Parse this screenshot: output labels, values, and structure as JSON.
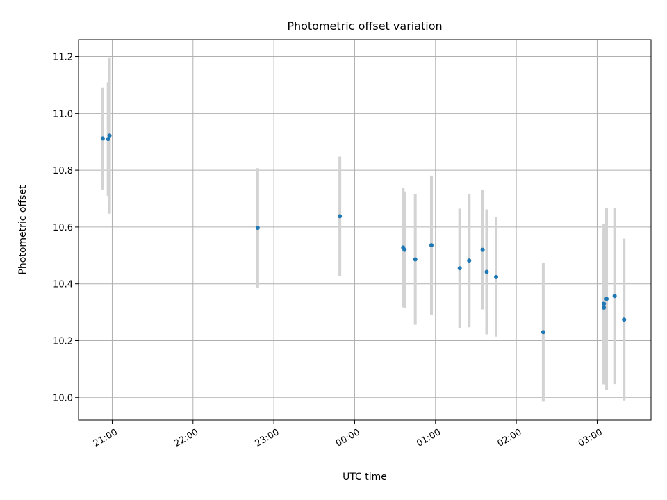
{
  "chart_data": {
    "type": "scatter",
    "title": "Photometric offset variation",
    "xlabel": "UTC time",
    "ylabel": "Photometric offset",
    "x_ticks": [
      {
        "hours": 21,
        "label": "21:00"
      },
      {
        "hours": 22,
        "label": "22:00"
      },
      {
        "hours": 23,
        "label": "23:00"
      },
      {
        "hours": 24,
        "label": "00:00"
      },
      {
        "hours": 25,
        "label": "01:00"
      },
      {
        "hours": 26,
        "label": "02:00"
      },
      {
        "hours": 27,
        "label": "03:00"
      }
    ],
    "y_ticks": [
      10.0,
      10.2,
      10.4,
      10.6,
      10.8,
      11.0,
      11.2
    ],
    "y_tick_labels": [
      "10.0",
      "10.2",
      "10.4",
      "10.6",
      "10.8",
      "11.0",
      "11.2"
    ],
    "xlim_utc": [
      "20:35",
      "03:40"
    ],
    "ylim": [
      9.92,
      11.26
    ],
    "grid": true,
    "colors": {
      "points": "#1f77b4",
      "errorbars": "#d3d3d3",
      "grid": "#b0b0b0"
    },
    "points": [
      {
        "time": "20:53",
        "y": 10.912,
        "err": 0.18
      },
      {
        "time": "20:57",
        "y": 10.91,
        "err": 0.2
      },
      {
        "time": "20:58",
        "y": 10.922,
        "err": 0.275
      },
      {
        "time": "22:48",
        "y": 10.597,
        "err": 0.21
      },
      {
        "time": "23:49",
        "y": 10.638,
        "err": 0.21
      },
      {
        "time": "00:36",
        "y": 10.528,
        "err": 0.21
      },
      {
        "time": "00:37",
        "y": 10.52,
        "err": 0.205
      },
      {
        "time": "00:45",
        "y": 10.486,
        "err": 0.23
      },
      {
        "time": "00:57",
        "y": 10.536,
        "err": 0.245
      },
      {
        "time": "01:18",
        "y": 10.455,
        "err": 0.21
      },
      {
        "time": "01:25",
        "y": 10.482,
        "err": 0.235
      },
      {
        "time": "01:35",
        "y": 10.52,
        "err": 0.21
      },
      {
        "time": "01:38",
        "y": 10.442,
        "err": 0.22
      },
      {
        "time": "01:45",
        "y": 10.424,
        "err": 0.21
      },
      {
        "time": "02:20",
        "y": 10.23,
        "err": 0.245
      },
      {
        "time": "03:05",
        "y": 10.33,
        "err": 0.28
      },
      {
        "time": "03:05",
        "y": 10.316,
        "err": 0.27
      },
      {
        "time": "03:07",
        "y": 10.347,
        "err": 0.32
      },
      {
        "time": "03:13",
        "y": 10.357,
        "err": 0.31
      },
      {
        "time": "03:20",
        "y": 10.274,
        "err": 0.285
      }
    ]
  }
}
